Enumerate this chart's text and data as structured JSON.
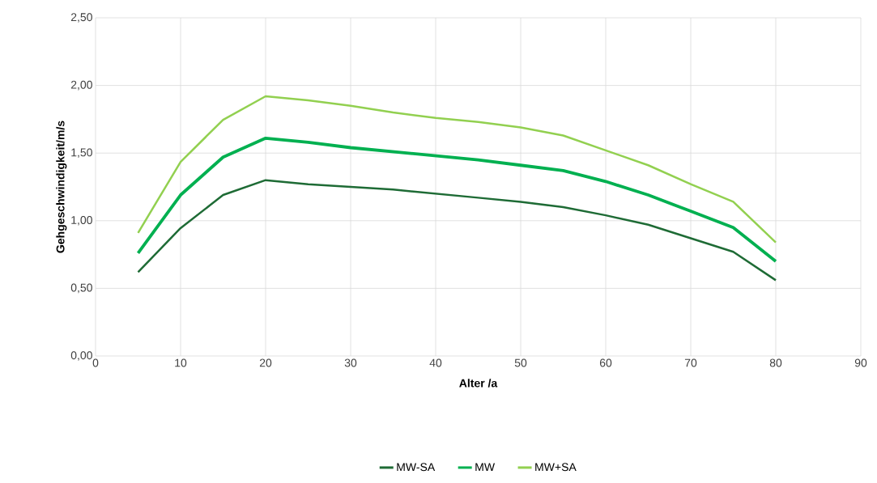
{
  "chart_data": {
    "type": "line",
    "xlabel": "Alter /a",
    "ylabel": "Gehgeschwindigkeit/m/s",
    "x": [
      5,
      10,
      15,
      20,
      25,
      30,
      35,
      40,
      45,
      50,
      55,
      60,
      65,
      70,
      75,
      80
    ],
    "series": [
      {
        "name": "MW-SA",
        "color": "#1e6b35",
        "values": [
          0.62,
          0.945,
          1.19,
          1.3,
          1.27,
          1.25,
          1.23,
          1.2,
          1.17,
          1.14,
          1.1,
          1.04,
          0.97,
          0.87,
          0.77,
          0.56
        ]
      },
      {
        "name": "MW",
        "color": "#00b050",
        "values": [
          0.76,
          1.19,
          1.47,
          1.61,
          1.58,
          1.54,
          1.51,
          1.48,
          1.45,
          1.41,
          1.37,
          1.29,
          1.19,
          1.07,
          0.95,
          0.7
        ]
      },
      {
        "name": "MW+SA",
        "color": "#92d050",
        "values": [
          0.91,
          1.435,
          1.746,
          1.92,
          1.89,
          1.85,
          1.8,
          1.76,
          1.73,
          1.69,
          1.63,
          1.52,
          1.41,
          1.27,
          1.14,
          0.84
        ]
      }
    ],
    "xlim": [
      0,
      90
    ],
    "xticks": [
      0,
      10,
      20,
      30,
      40,
      50,
      60,
      70,
      80,
      90
    ],
    "ylim": [
      0,
      2.5
    ],
    "yticks": [
      {
        "value": 0,
        "label": "0,00"
      },
      {
        "value": 0.5,
        "label": "0,50"
      },
      {
        "value": 1,
        "label": "1,00"
      },
      {
        "value": 1.5,
        "label": "1,50"
      },
      {
        "value": 2,
        "label": "2,00"
      },
      {
        "value": 2.5,
        "label": "2,50"
      }
    ],
    "grid": true,
    "legend": "bottom",
    "marker": "none",
    "line_style": "solid"
  }
}
